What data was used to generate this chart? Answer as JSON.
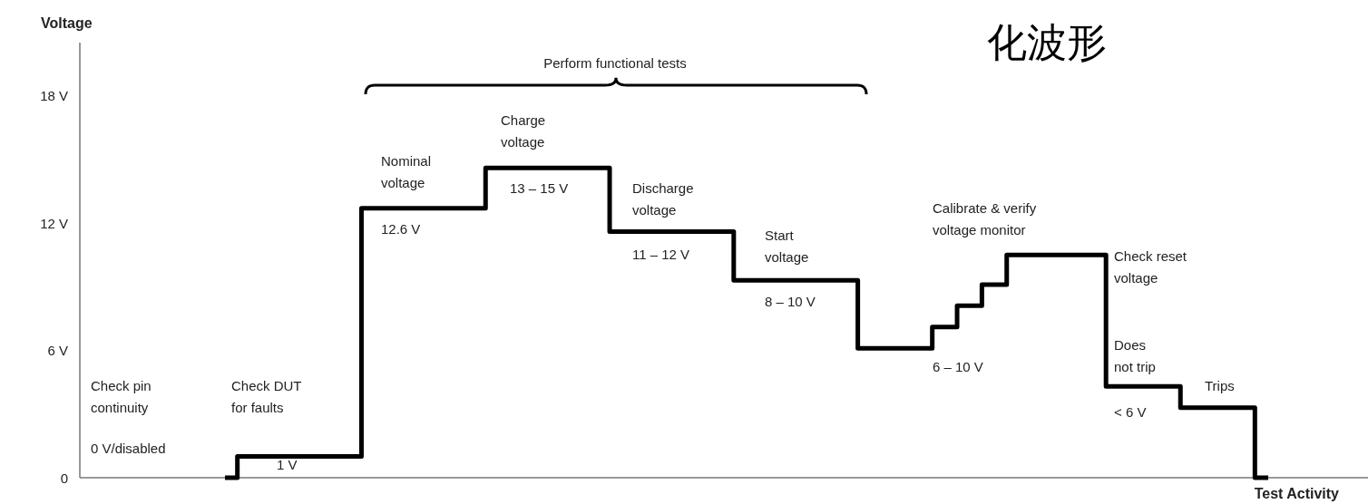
{
  "chart_data": {
    "type": "step",
    "title": "化波形",
    "ylabel": "Voltage",
    "xlabel": "Test Activity",
    "categories": [
      null,
      null,
      null,
      null,
      null,
      null,
      null,
      null,
      null,
      null,
      null,
      null,
      null,
      null,
      null,
      null,
      null,
      null,
      null,
      null,
      null,
      null,
      null,
      null,
      null,
      null,
      null,
      null,
      null,
      null,
      null,
      null,
      null,
      null,
      null,
      null,
      null,
      null,
      null,
      null,
      null,
      null,
      null
    ],
    "series": [
      {
        "color": "#000000",
        "values": [
          0,
          1,
          1,
          1,
          1,
          1,
          12.7,
          12.7,
          12.7,
          12.7,
          12.7,
          14.6,
          14.6,
          14.6,
          14.6,
          14.6,
          11.6,
          11.6,
          11.6,
          11.6,
          11.6,
          9.3,
          9.3,
          9.3,
          9.3,
          9.3,
          6.1,
          6.1,
          6.1,
          7.1,
          8.1,
          9.1,
          10.5,
          10.5,
          10.5,
          10.5,
          4.3,
          4.3,
          4.3,
          3.3,
          3.3,
          3.3,
          0
        ]
      }
    ],
    "ylim": [
      0,
      20.5
    ],
    "yticks": [
      {
        "value": 0,
        "label": "0"
      },
      {
        "value": 6,
        "label": "6 V"
      },
      {
        "value": 12,
        "label": "12 V"
      },
      {
        "value": 18,
        "label": "18 V"
      }
    ],
    "tick_labels": "y",
    "annotations": [
      "Perform functional tests",
      "Check pin\ncontinuity",
      "0 V/disabled",
      "Check DUT\nfor faults",
      "1 V",
      "Nominal\nvoltage",
      "12.6 V",
      "Charge\nvoltage",
      "13 – 15 V",
      "Discharge\nvoltage",
      "11 – 12 V",
      "Start\nvoltage",
      "8 – 10 V",
      "Calibrate & verify\nvoltage monitor",
      "6 – 10 V",
      "Check reset\nvoltage",
      "Does\nnot trip",
      "< 6 V",
      "Trips"
    ]
  }
}
